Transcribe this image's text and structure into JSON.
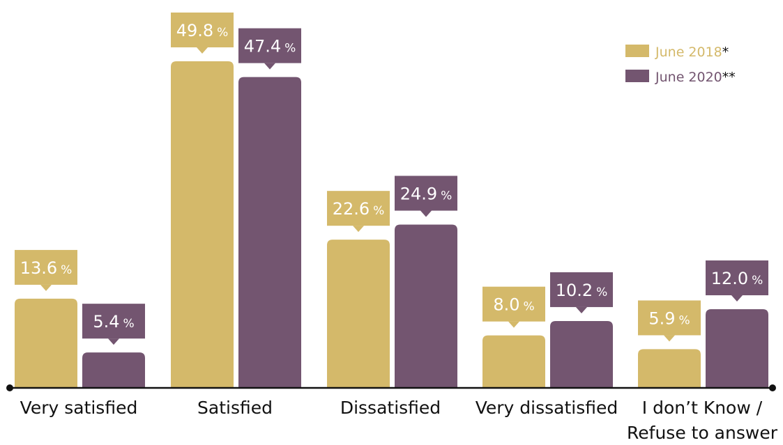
{
  "chart_data": {
    "type": "bar",
    "title": "",
    "xlabel": "",
    "ylabel": "",
    "ylim": [
      0,
      49.8
    ],
    "grid": false,
    "legend_position": "top-right",
    "categories": [
      [
        "Very satisfied"
      ],
      [
        "Satisfied"
      ],
      [
        "Dissatisfied"
      ],
      [
        "Very dissatisfied"
      ],
      [
        "I don’t Know /",
        "Refuse to answer"
      ]
    ],
    "series": [
      {
        "name": "June 2018",
        "legend_suffix": "*",
        "color": "#d4b96a",
        "values": [
          13.6,
          49.8,
          22.6,
          8.0,
          5.9
        ],
        "value_labels": [
          "13.6",
          "49.8",
          "22.6",
          "8.0",
          "5.9"
        ],
        "unit_labels": [
          "%",
          "%",
          "%",
          "%",
          "%"
        ]
      },
      {
        "name": "June 2020",
        "legend_suffix": "**",
        "color": "#735570",
        "values": [
          5.4,
          47.4,
          24.9,
          10.2,
          12.0
        ],
        "value_labels": [
          "5.4",
          "47.4",
          "24.9",
          "10.2",
          "12.0"
        ],
        "unit_labels": [
          "%",
          "%",
          "%",
          "%",
          "%"
        ]
      }
    ]
  }
}
